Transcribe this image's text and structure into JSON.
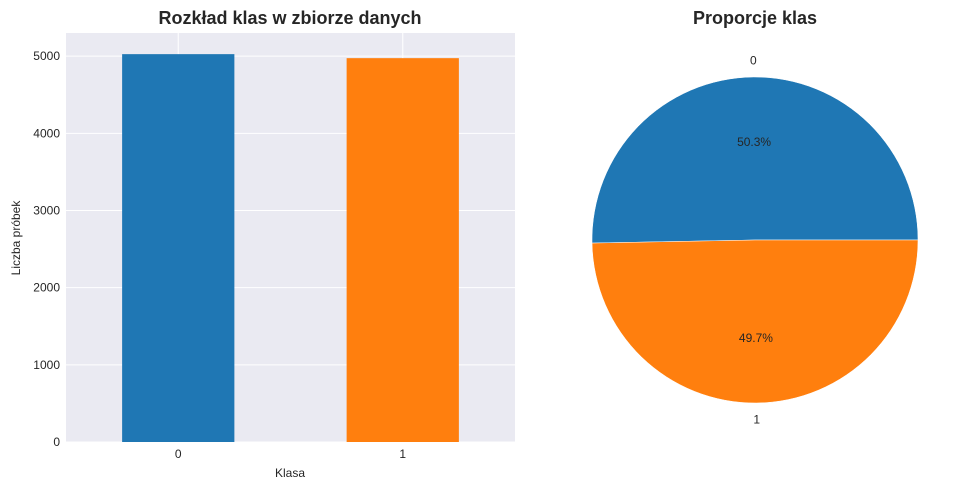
{
  "chart_data": [
    {
      "type": "bar",
      "title": "Rozkład klas w zbiorze danych",
      "xlabel": "Klasa",
      "ylabel": "Liczba próbek",
      "categories": [
        "0",
        "1"
      ],
      "values": [
        5026,
        4974
      ],
      "colors": [
        "#1f77b4",
        "#ff7f0e"
      ],
      "ylim": [
        0,
        5300
      ],
      "yticks": [
        0,
        1000,
        2000,
        3000,
        4000,
        5000
      ],
      "ytick_labels": [
        "0",
        "1000",
        "2000",
        "3000",
        "4000",
        "5000"
      ],
      "grid": true,
      "background": "#eaeaf2"
    },
    {
      "type": "pie",
      "title": "Proporcje klas",
      "labels": [
        "0",
        "1"
      ],
      "values": [
        50.3,
        49.7
      ],
      "pct_labels": [
        "50.3%",
        "49.7%"
      ],
      "colors": [
        "#1f77b4",
        "#ff7f0e"
      ]
    }
  ]
}
